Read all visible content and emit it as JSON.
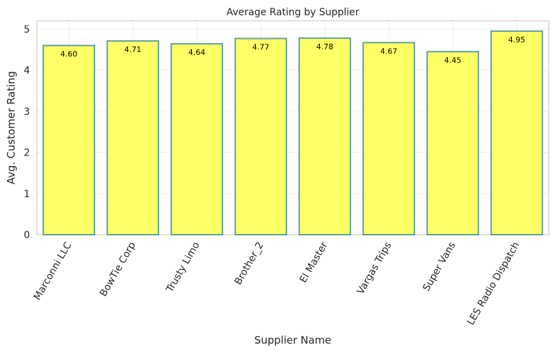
{
  "chart_data": {
    "type": "bar",
    "title": "Average Rating by Supplier",
    "xlabel": "Supplier Name",
    "ylabel": "Avg. Customer Rating",
    "categories": [
      "Marconni LLC",
      "BowTie Corp",
      "Trusty Limo",
      "Brother_2",
      "El Master",
      "Vargas Trips",
      "Super Vans",
      "LES Radio Dispatch"
    ],
    "values": [
      4.6,
      4.71,
      4.64,
      4.77,
      4.78,
      4.67,
      4.45,
      4.95
    ],
    "value_labels": [
      "4.60",
      "4.71",
      "4.64",
      "4.77",
      "4.78",
      "4.67",
      "4.45",
      "4.95"
    ],
    "ylim": [
      0,
      5.2
    ],
    "yticks": [
      0,
      1,
      2,
      3,
      4,
      5
    ],
    "grid": true,
    "colors": {
      "bar_fill": "#ffff66",
      "bar_edge": "#5f9ea0",
      "grid": "#ebebeb",
      "axes": "#cccccc",
      "text": "#262626"
    }
  }
}
